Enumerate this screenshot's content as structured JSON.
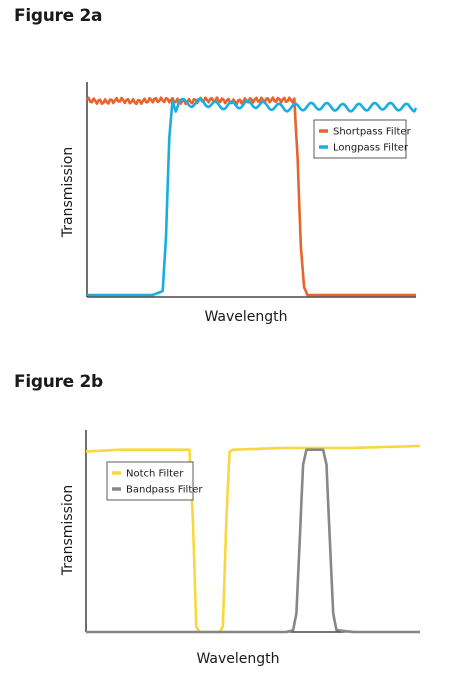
{
  "chart_data": [
    {
      "type": "line",
      "title": "Figure 2a",
      "xlabel": "Wavelength",
      "ylabel": "Transmission",
      "xlim": [
        0,
        100
      ],
      "ylim": [
        0,
        1
      ],
      "grid": false,
      "legend_position": "right",
      "series": [
        {
          "name": "Shortpass Filter",
          "color": "#e8642c",
          "x": [
            0,
            5,
            10,
            15,
            20,
            25,
            30,
            35,
            40,
            45,
            50,
            55,
            60,
            63,
            64,
            65,
            66,
            67,
            70,
            80,
            90,
            100
          ],
          "y": [
            0.99,
            0.98,
            0.99,
            0.98,
            0.99,
            0.99,
            0.98,
            0.99,
            0.99,
            0.98,
            0.99,
            0.99,
            0.99,
            0.99,
            0.7,
            0.25,
            0.05,
            0.01,
            0.01,
            0.01,
            0.01,
            0.01
          ]
        },
        {
          "name": "Longpass Filter",
          "color": "#19aee0",
          "x": [
            0,
            10,
            20,
            23,
            24,
            25,
            26,
            27,
            28,
            30,
            35,
            40,
            50,
            60,
            70,
            80,
            90,
            100
          ],
          "y": [
            0.01,
            0.01,
            0.01,
            0.03,
            0.3,
            0.8,
            0.99,
            0.95,
            0.99,
            0.97,
            0.98,
            0.96,
            0.97,
            0.95,
            0.96,
            0.95,
            0.96,
            0.95
          ]
        }
      ]
    },
    {
      "type": "line",
      "title": "Figure 2b",
      "xlabel": "Wavelength",
      "ylabel": "Transmission",
      "xlim": [
        0,
        100
      ],
      "ylim": [
        0,
        1
      ],
      "grid": false,
      "legend_position": "left",
      "series": [
        {
          "name": "Notch Filter",
          "color": "#f7d841",
          "x": [
            0,
            10,
            20,
            30,
            31,
            32,
            33,
            34,
            40,
            41,
            42,
            43,
            44,
            60,
            80,
            100
          ],
          "y": [
            0.97,
            0.98,
            0.98,
            0.98,
            0.98,
            0.6,
            0.03,
            0.0,
            0.0,
            0.03,
            0.6,
            0.97,
            0.98,
            0.99,
            0.99,
            1.0
          ]
        },
        {
          "name": "Bandpass Filter",
          "color": "#858789",
          "x": [
            0,
            20,
            40,
            60,
            62,
            63,
            64,
            65,
            66,
            71,
            72,
            73,
            74,
            75,
            80,
            100
          ],
          "y": [
            0.0,
            0.0,
            0.0,
            0.0,
            0.01,
            0.1,
            0.5,
            0.9,
            0.98,
            0.98,
            0.9,
            0.5,
            0.1,
            0.01,
            0.0,
            0.0
          ]
        }
      ]
    }
  ]
}
